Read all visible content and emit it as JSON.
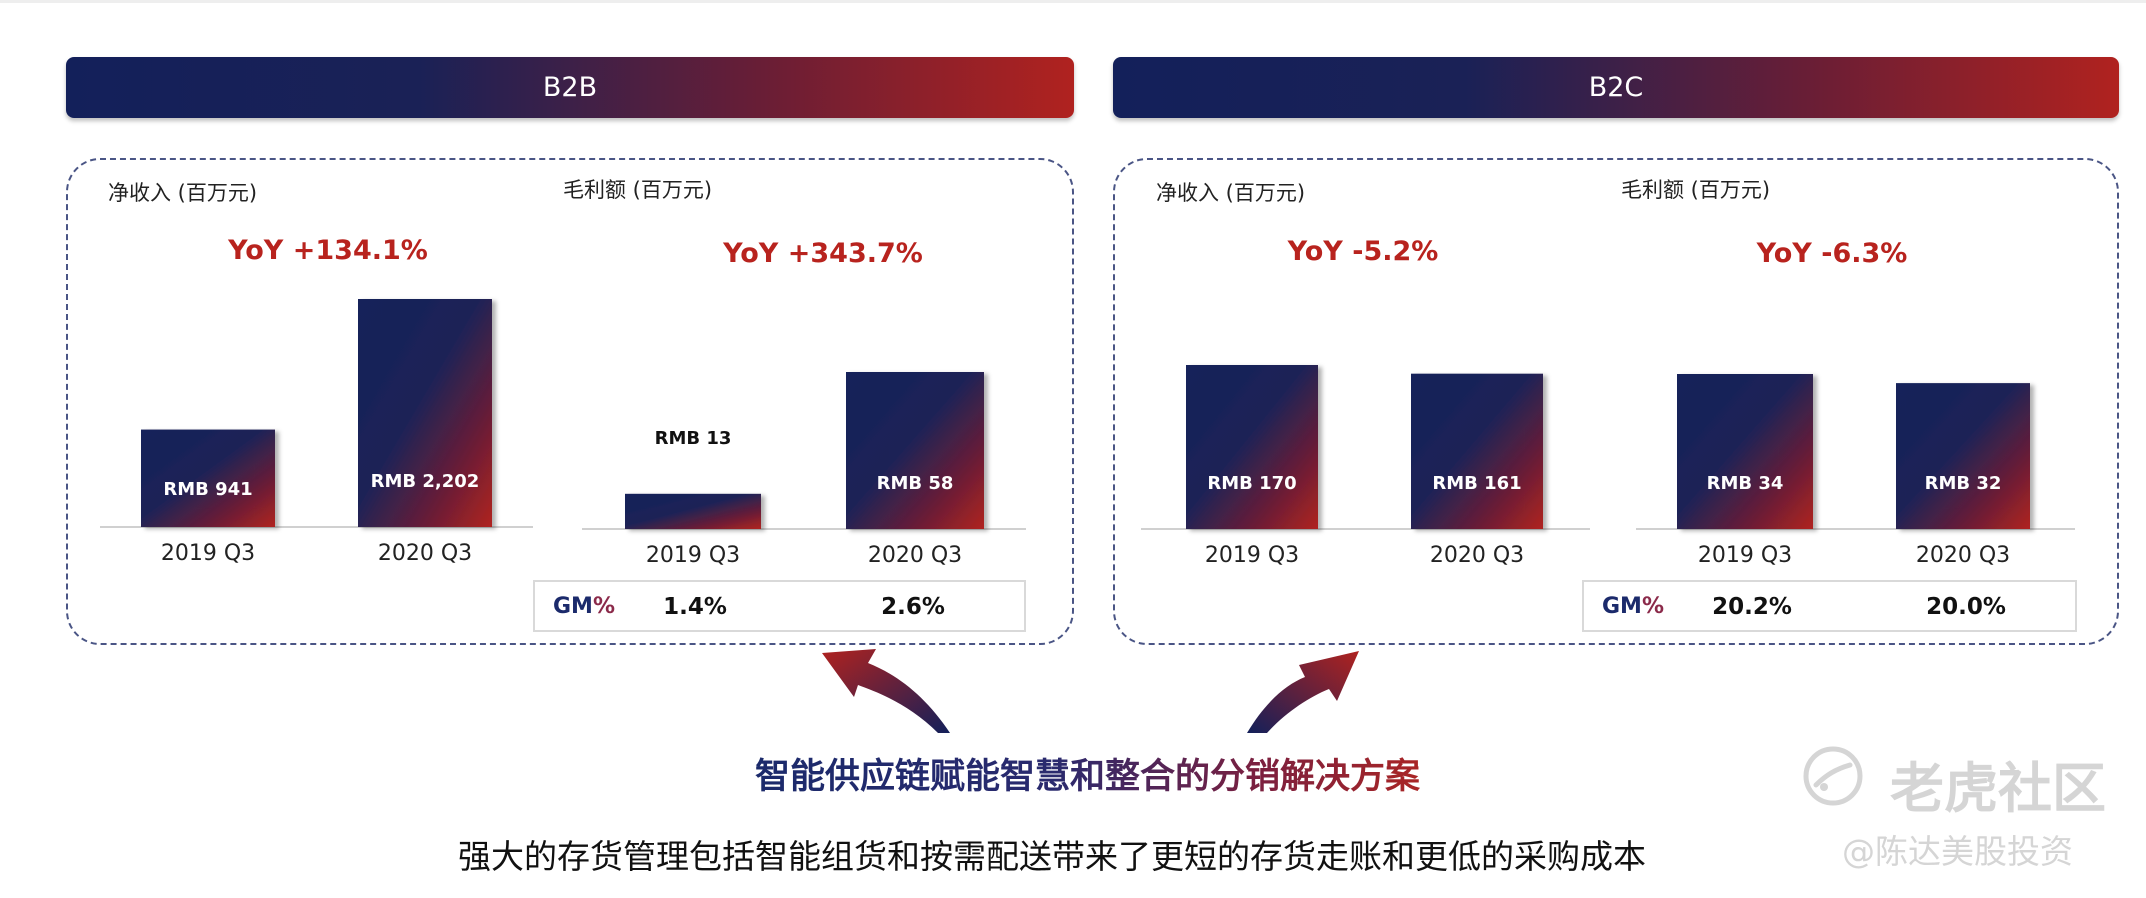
{
  "segments": [
    {
      "title": "B2B",
      "revenue": {
        "label": "净收入 (百万元)",
        "yoy": "YoY +134.1%"
      },
      "gross_profit": {
        "label": "毛利额 (百万元)",
        "yoy": "YoY +343.7%"
      },
      "gm": {
        "label_g": "GM",
        "label_r": "%",
        "v2019": "1.4%",
        "v2020": "2.6%"
      }
    },
    {
      "title": "B2C",
      "revenue": {
        "label": "净收入 (百万元)",
        "yoy": "YoY -5.2%"
      },
      "gross_profit": {
        "label": "毛利额 (百万元)",
        "yoy": "YoY -6.3%"
      },
      "gm": {
        "label_g": "GM",
        "label_r": "%",
        "v2019": "20.2%",
        "v2020": "20.0%"
      }
    }
  ],
  "chart_data": [
    {
      "type": "bar",
      "segment": "B2B",
      "ylabel": "净收入 (百万元)",
      "categories": [
        "2019 Q3",
        "2020 Q3"
      ],
      "values": [
        941,
        2202
      ],
      "data_labels": [
        "RMB 941",
        "RMB 2,202"
      ],
      "annotation": "YoY +134.1%"
    },
    {
      "type": "bar",
      "segment": "B2B",
      "ylabel": "毛利额 (百万元)",
      "categories": [
        "2019 Q3",
        "2020 Q3"
      ],
      "values": [
        13,
        58
      ],
      "data_labels": [
        "RMB 13",
        "RMB 58"
      ],
      "annotation": "YoY +343.7%"
    },
    {
      "type": "bar",
      "segment": "B2C",
      "ylabel": "净收入 (百万元)",
      "categories": [
        "2019 Q3",
        "2020 Q3"
      ],
      "values": [
        170,
        161
      ],
      "data_labels": [
        "RMB 170",
        "RMB 161"
      ],
      "annotation": "YoY -5.2%"
    },
    {
      "type": "bar",
      "segment": "B2C",
      "ylabel": "毛利额 (百万元)",
      "categories": [
        "2019 Q3",
        "2020 Q3"
      ],
      "values": [
        34,
        32
      ],
      "data_labels": [
        "RMB 34",
        "RMB 32"
      ],
      "annotation": "YoY -6.3%"
    }
  ],
  "headline": "智能供应链赋能智慧和整合的分销解决方案",
  "subline": "强大的存货管理包括智能组货和按需配送带来了更短的存货走账和更低的采购成本",
  "watermark": {
    "brand": "老虎社区",
    "author": "@陈达美股投资"
  },
  "colors": {
    "navy": "#13205a",
    "red": "#b0221f",
    "yoy": "#b8231e"
  }
}
